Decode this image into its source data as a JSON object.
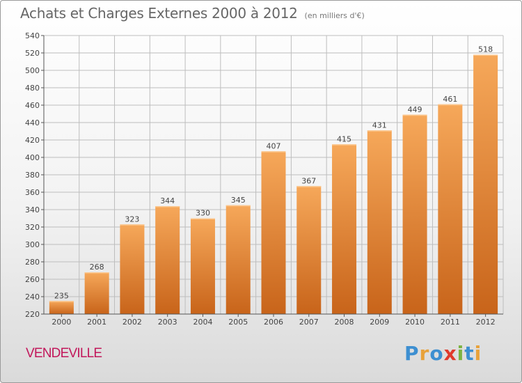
{
  "title": "Achats et Charges Externes 2000 à 2012",
  "subtitle": "(en milliers d'€)",
  "location": "VENDEVILLE",
  "logo": {
    "text": "Proxiti",
    "colors": [
      "#3d8fd1",
      "#e8a23a",
      "#3d8fd1",
      "#e03a2c",
      "#7cb342",
      "#3d8fd1",
      "#e8a23a"
    ]
  },
  "colors": {
    "bar_top": "#f6a85a",
    "bar_bottom": "#c8641a",
    "grid": "#bdbdbd"
  },
  "chart_data": {
    "type": "bar",
    "categories": [
      "2000",
      "2001",
      "2002",
      "2003",
      "2004",
      "2005",
      "2006",
      "2007",
      "2008",
      "2009",
      "2010",
      "2011",
      "2012"
    ],
    "values": [
      235,
      268,
      323,
      344,
      330,
      345,
      407,
      367,
      415,
      431,
      449,
      461,
      518
    ],
    "ylim": [
      220,
      540
    ],
    "yticks": [
      220,
      240,
      260,
      280,
      300,
      320,
      340,
      360,
      380,
      400,
      420,
      440,
      460,
      480,
      500,
      520,
      540
    ],
    "grid": true
  }
}
